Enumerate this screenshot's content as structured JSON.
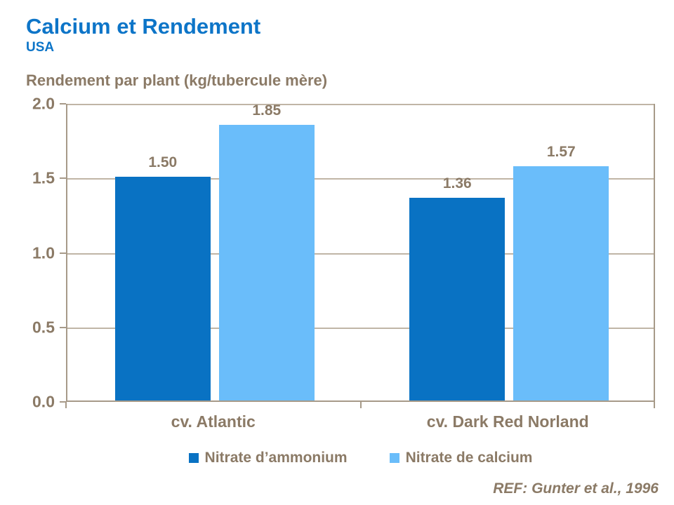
{
  "header": {
    "title": "Calcium et Rendement",
    "subtitle": "USA"
  },
  "chart_data": {
    "type": "bar",
    "title": "Rendement par plant (kg/tubercule mère)",
    "categories": [
      "cv. Atlantic",
      "cv. Dark Red Norland"
    ],
    "series": [
      {
        "name": "Nitrate d’ammonium",
        "color": "#0972C3",
        "values": [
          1.5,
          1.36
        ]
      },
      {
        "name": "Nitrate de calcium",
        "color": "#6ABDFA",
        "values": [
          1.85,
          1.57
        ]
      }
    ],
    "ylim": [
      0,
      2.0
    ],
    "yticks": [
      0.0,
      0.5,
      1.0,
      1.5,
      2.0
    ],
    "ytick_labels": [
      "0.0",
      "0.5",
      "1.0",
      "1.5",
      "2.0"
    ],
    "grid": true,
    "legend_position": "bottom",
    "value_label_decimals": 2
  },
  "footer": {
    "ref": "REF: Gunter et al., 1996"
  },
  "colors": {
    "title_blue": "#0D75C8",
    "text_brown": "#8B7A66",
    "axis": "#A79A89",
    "gridline": "#C0B5A6"
  }
}
